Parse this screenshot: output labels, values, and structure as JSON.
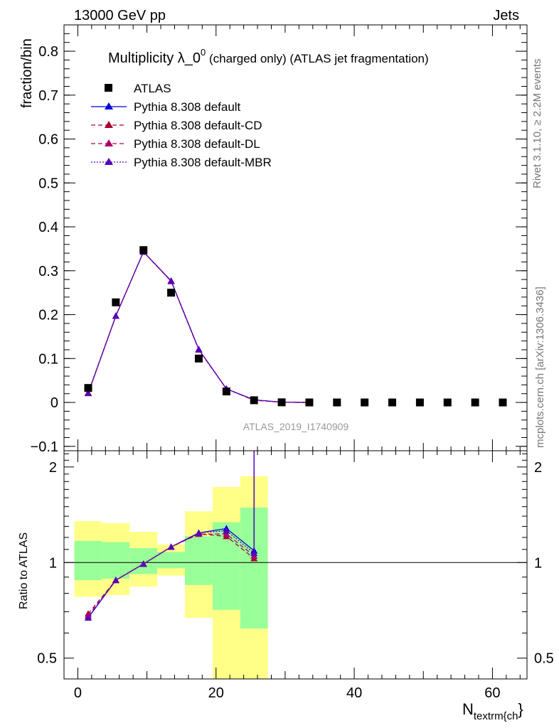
{
  "header": {
    "left": "13000 GeV pp",
    "right": "Jets"
  },
  "plot_title": {
    "main": "Multiplicity λ_0",
    "sup": "0",
    "rest": " (charged only) (ATLAS jet fragmentation)"
  },
  "side_labels": {
    "rivet": "Rivet 3.1.10, ≥ 2.2M events",
    "mcplots": "mcplots.cern.ch [arXiv:1306.3436]"
  },
  "watermark": "ATLAS_2019_I1740909",
  "colors": {
    "atlas": "#000000",
    "default": "#0000dd",
    "default_cd": "#aa0033",
    "default_dl": "#aa0066",
    "default_mbr": "#5500bb",
    "band_stat": "#99ff99",
    "band_total": "#ffff88"
  },
  "chart_data": [
    {
      "type": "scatter",
      "panel": "main",
      "title": "Multiplicity λ_0^0 (charged only) (ATLAS jet fragmentation)",
      "ylabel": "fraction/bin",
      "xlim": [
        -2,
        65
      ],
      "ylim": [
        -0.11,
        0.86
      ],
      "xticks": [
        0,
        20,
        40,
        60
      ],
      "yticks": [
        -0.1,
        0,
        0.1,
        0.2,
        0.3,
        0.4,
        0.5,
        0.6,
        0.7,
        0.8
      ],
      "ytick_labels": [
        "−0.1",
        "0",
        "0.1",
        "0.2",
        "0.3",
        "0.4",
        "0.5",
        "0.6",
        "0.7",
        "0.8"
      ],
      "legend_position": "top-left",
      "x": [
        1.5,
        5.5,
        9.5,
        13.5,
        17.5,
        21.5,
        25.5,
        29.5,
        33.5,
        37.5,
        41.5,
        45.5,
        49.5,
        53.5,
        57.5,
        61.5
      ],
      "series": [
        {
          "name": "ATLAS",
          "style": "square",
          "color_key": "atlas",
          "values": [
            0.033,
            0.228,
            0.347,
            0.25,
            0.1,
            0.025,
            0.005,
            0.0003,
            0.0,
            0.0,
            0.0,
            0.0,
            0.0,
            0.0,
            0.0,
            0.0
          ]
        },
        {
          "name": "Pythia 8.308 default",
          "style": "solid",
          "color_key": "default",
          "values": [
            0.021,
            0.197,
            0.343,
            0.277,
            0.121,
            0.031,
            0.006,
            0.0005,
            0.0
          ]
        },
        {
          "name": "Pythia 8.308 default-CD",
          "style": "dashed",
          "color_key": "default_cd",
          "values": [
            0.022,
            0.197,
            0.343,
            0.276,
            0.12,
            0.031,
            0.005,
            0.0005,
            0.0
          ]
        },
        {
          "name": "Pythia 8.308 default-DL",
          "style": "dashed",
          "color_key": "default_dl",
          "values": [
            0.022,
            0.197,
            0.343,
            0.276,
            0.12,
            0.031,
            0.005,
            0.0005,
            0.0
          ]
        },
        {
          "name": "Pythia 8.308 default-MBR",
          "style": "dotted",
          "color_key": "default_mbr",
          "values": [
            0.021,
            0.197,
            0.343,
            0.277,
            0.121,
            0.031,
            0.006,
            0.0005,
            0.0
          ]
        }
      ]
    },
    {
      "type": "line",
      "panel": "ratio",
      "xlabel": "N",
      "xlabel_sub": "textrm{ch",
      "xlabel_tail": "}",
      "ylabel": "Ratio to ATLAS",
      "ylim": [
        0.43,
        2.25
      ],
      "log_y": true,
      "xticks": [
        0,
        20,
        40,
        60
      ],
      "yticks": [
        0.5,
        1,
        2
      ],
      "bins": [
        {
          "lo": -0.5,
          "hi": 3.5,
          "stat": [
            0.88,
            1.17
          ],
          "total": [
            0.78,
            1.35
          ]
        },
        {
          "lo": 3.5,
          "hi": 7.5,
          "stat": [
            0.89,
            1.16
          ],
          "total": [
            0.79,
            1.33
          ]
        },
        {
          "lo": 7.5,
          "hi": 11.5,
          "stat": [
            0.92,
            1.11
          ],
          "total": [
            0.84,
            1.25
          ]
        },
        {
          "lo": 11.5,
          "hi": 15.5,
          "stat": [
            0.96,
            1.08
          ],
          "total": [
            0.91,
            1.14
          ]
        },
        {
          "lo": 15.5,
          "hi": 19.5,
          "stat": [
            0.85,
            1.21
          ],
          "total": [
            0.67,
            1.45
          ]
        },
        {
          "lo": 19.5,
          "hi": 23.5,
          "stat": [
            0.71,
            1.34
          ],
          "total": [
            0.35,
            1.73
          ]
        },
        {
          "lo": 23.5,
          "hi": 27.5,
          "stat": [
            0.62,
            1.49
          ],
          "total": [
            0.35,
            1.87
          ]
        }
      ],
      "x": [
        1.5,
        5.5,
        9.5,
        13.5,
        17.5,
        21.5,
        25.5
      ],
      "series": [
        {
          "name": "Pythia 8.308 default",
          "style": "solid",
          "color_key": "default",
          "values": [
            0.67,
            0.88,
            0.99,
            1.12,
            1.24,
            1.28,
            1.09
          ],
          "spike_last": true
        },
        {
          "name": "Pythia 8.308 default-CD",
          "style": "dashed",
          "color_key": "default_cd",
          "values": [
            0.69,
            0.88,
            0.99,
            1.12,
            1.23,
            1.21,
            1.03
          ],
          "spike_last": false
        },
        {
          "name": "Pythia 8.308 default-DL",
          "style": "dashed",
          "color_key": "default_dl",
          "values": [
            0.68,
            0.88,
            0.99,
            1.12,
            1.23,
            1.23,
            1.05
          ],
          "spike_last": false
        },
        {
          "name": "Pythia 8.308 default-MBR",
          "style": "dotted",
          "color_key": "default_mbr",
          "values": [
            0.67,
            0.88,
            0.99,
            1.12,
            1.24,
            1.26,
            1.07
          ],
          "spike_last": true
        }
      ]
    }
  ]
}
